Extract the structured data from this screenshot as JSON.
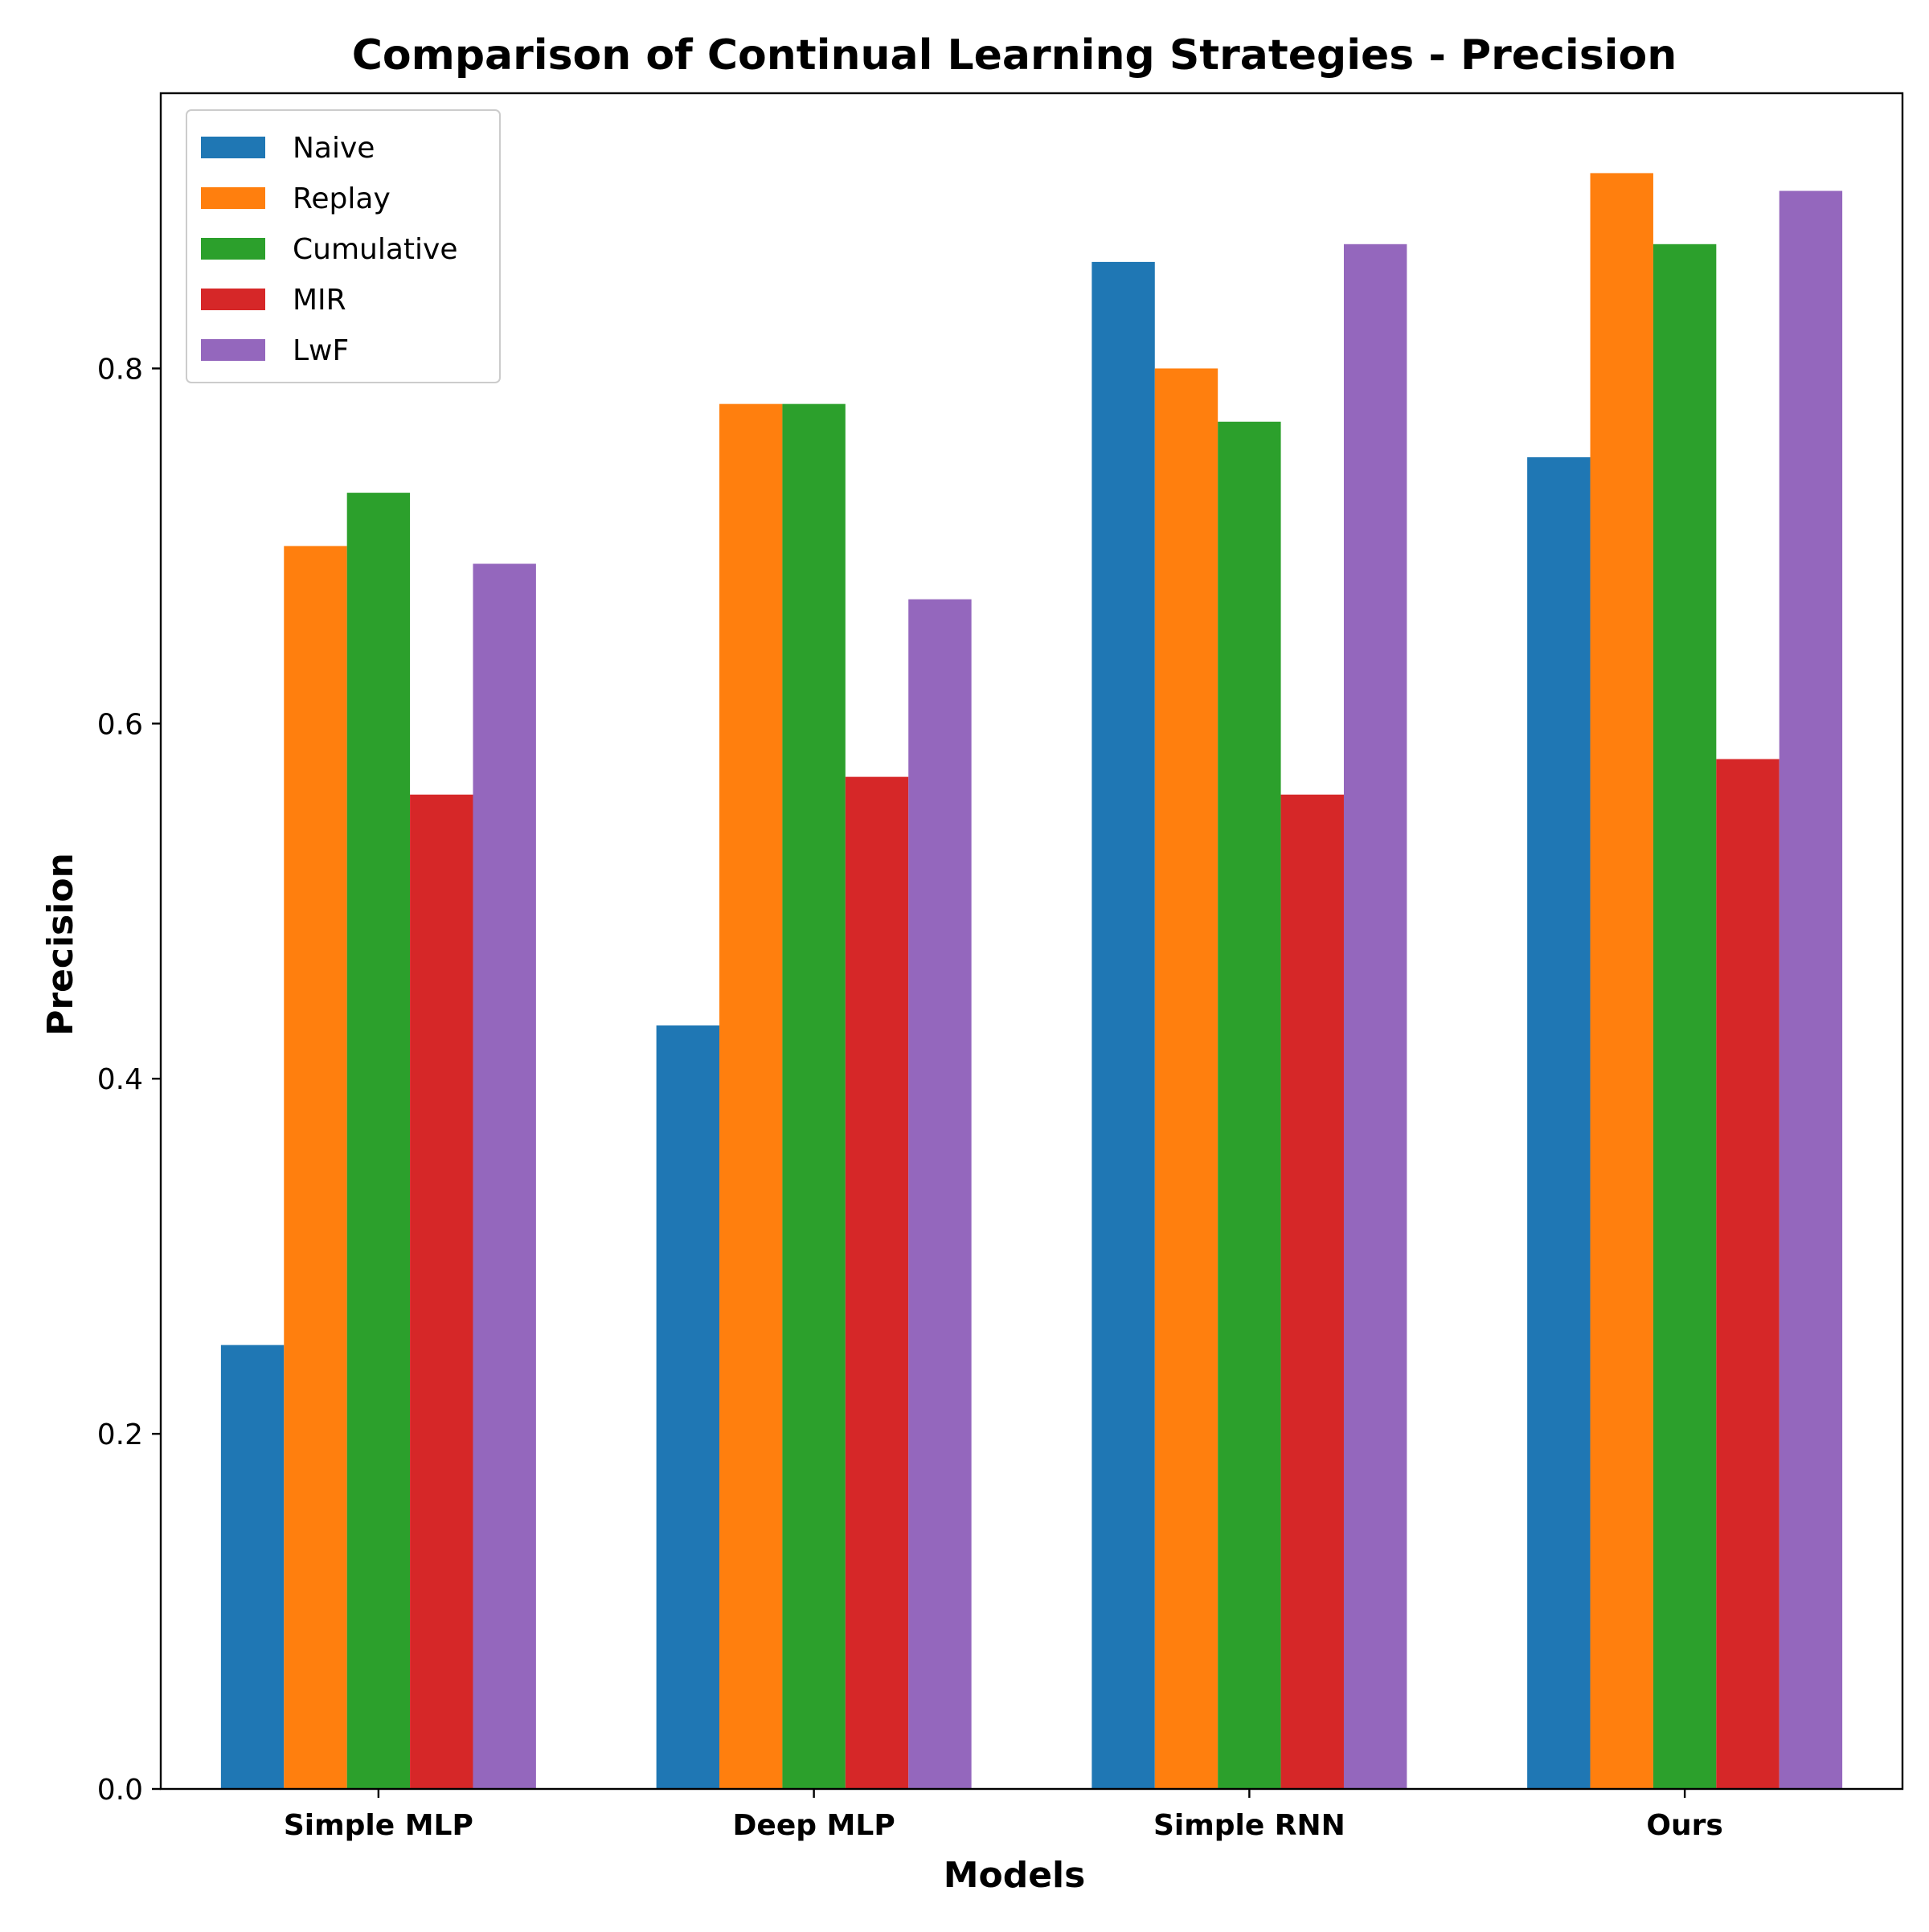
{
  "chart_data": {
    "type": "bar",
    "title": "Comparison of Continual Learning Strategies - Precision",
    "xlabel": "Models",
    "ylabel": "Precision",
    "categories": [
      "Simple MLP",
      "Deep MLP",
      "Simple RNN",
      "Ours"
    ],
    "ylim": [
      0,
      0.955
    ],
    "yticks": [
      0.0,
      0.2,
      0.4,
      0.6,
      0.8
    ],
    "ytick_labels": [
      "0.0",
      "0.2",
      "0.4",
      "0.6",
      "0.8"
    ],
    "grid": false,
    "legend_position": "top-left",
    "series": [
      {
        "name": "Naive",
        "color": "#1f77b4",
        "values": [
          0.25,
          0.43,
          0.86,
          0.75
        ]
      },
      {
        "name": "Replay",
        "color": "#ff7f0e",
        "values": [
          0.7,
          0.78,
          0.8,
          0.91
        ]
      },
      {
        "name": "Cumulative",
        "color": "#2ca02c",
        "values": [
          0.73,
          0.78,
          0.77,
          0.87
        ]
      },
      {
        "name": "MIR",
        "color": "#d62728",
        "values": [
          0.56,
          0.57,
          0.56,
          0.58
        ]
      },
      {
        "name": "LwF",
        "color": "#9467bd",
        "values": [
          0.69,
          0.67,
          0.87,
          0.9
        ]
      }
    ]
  }
}
